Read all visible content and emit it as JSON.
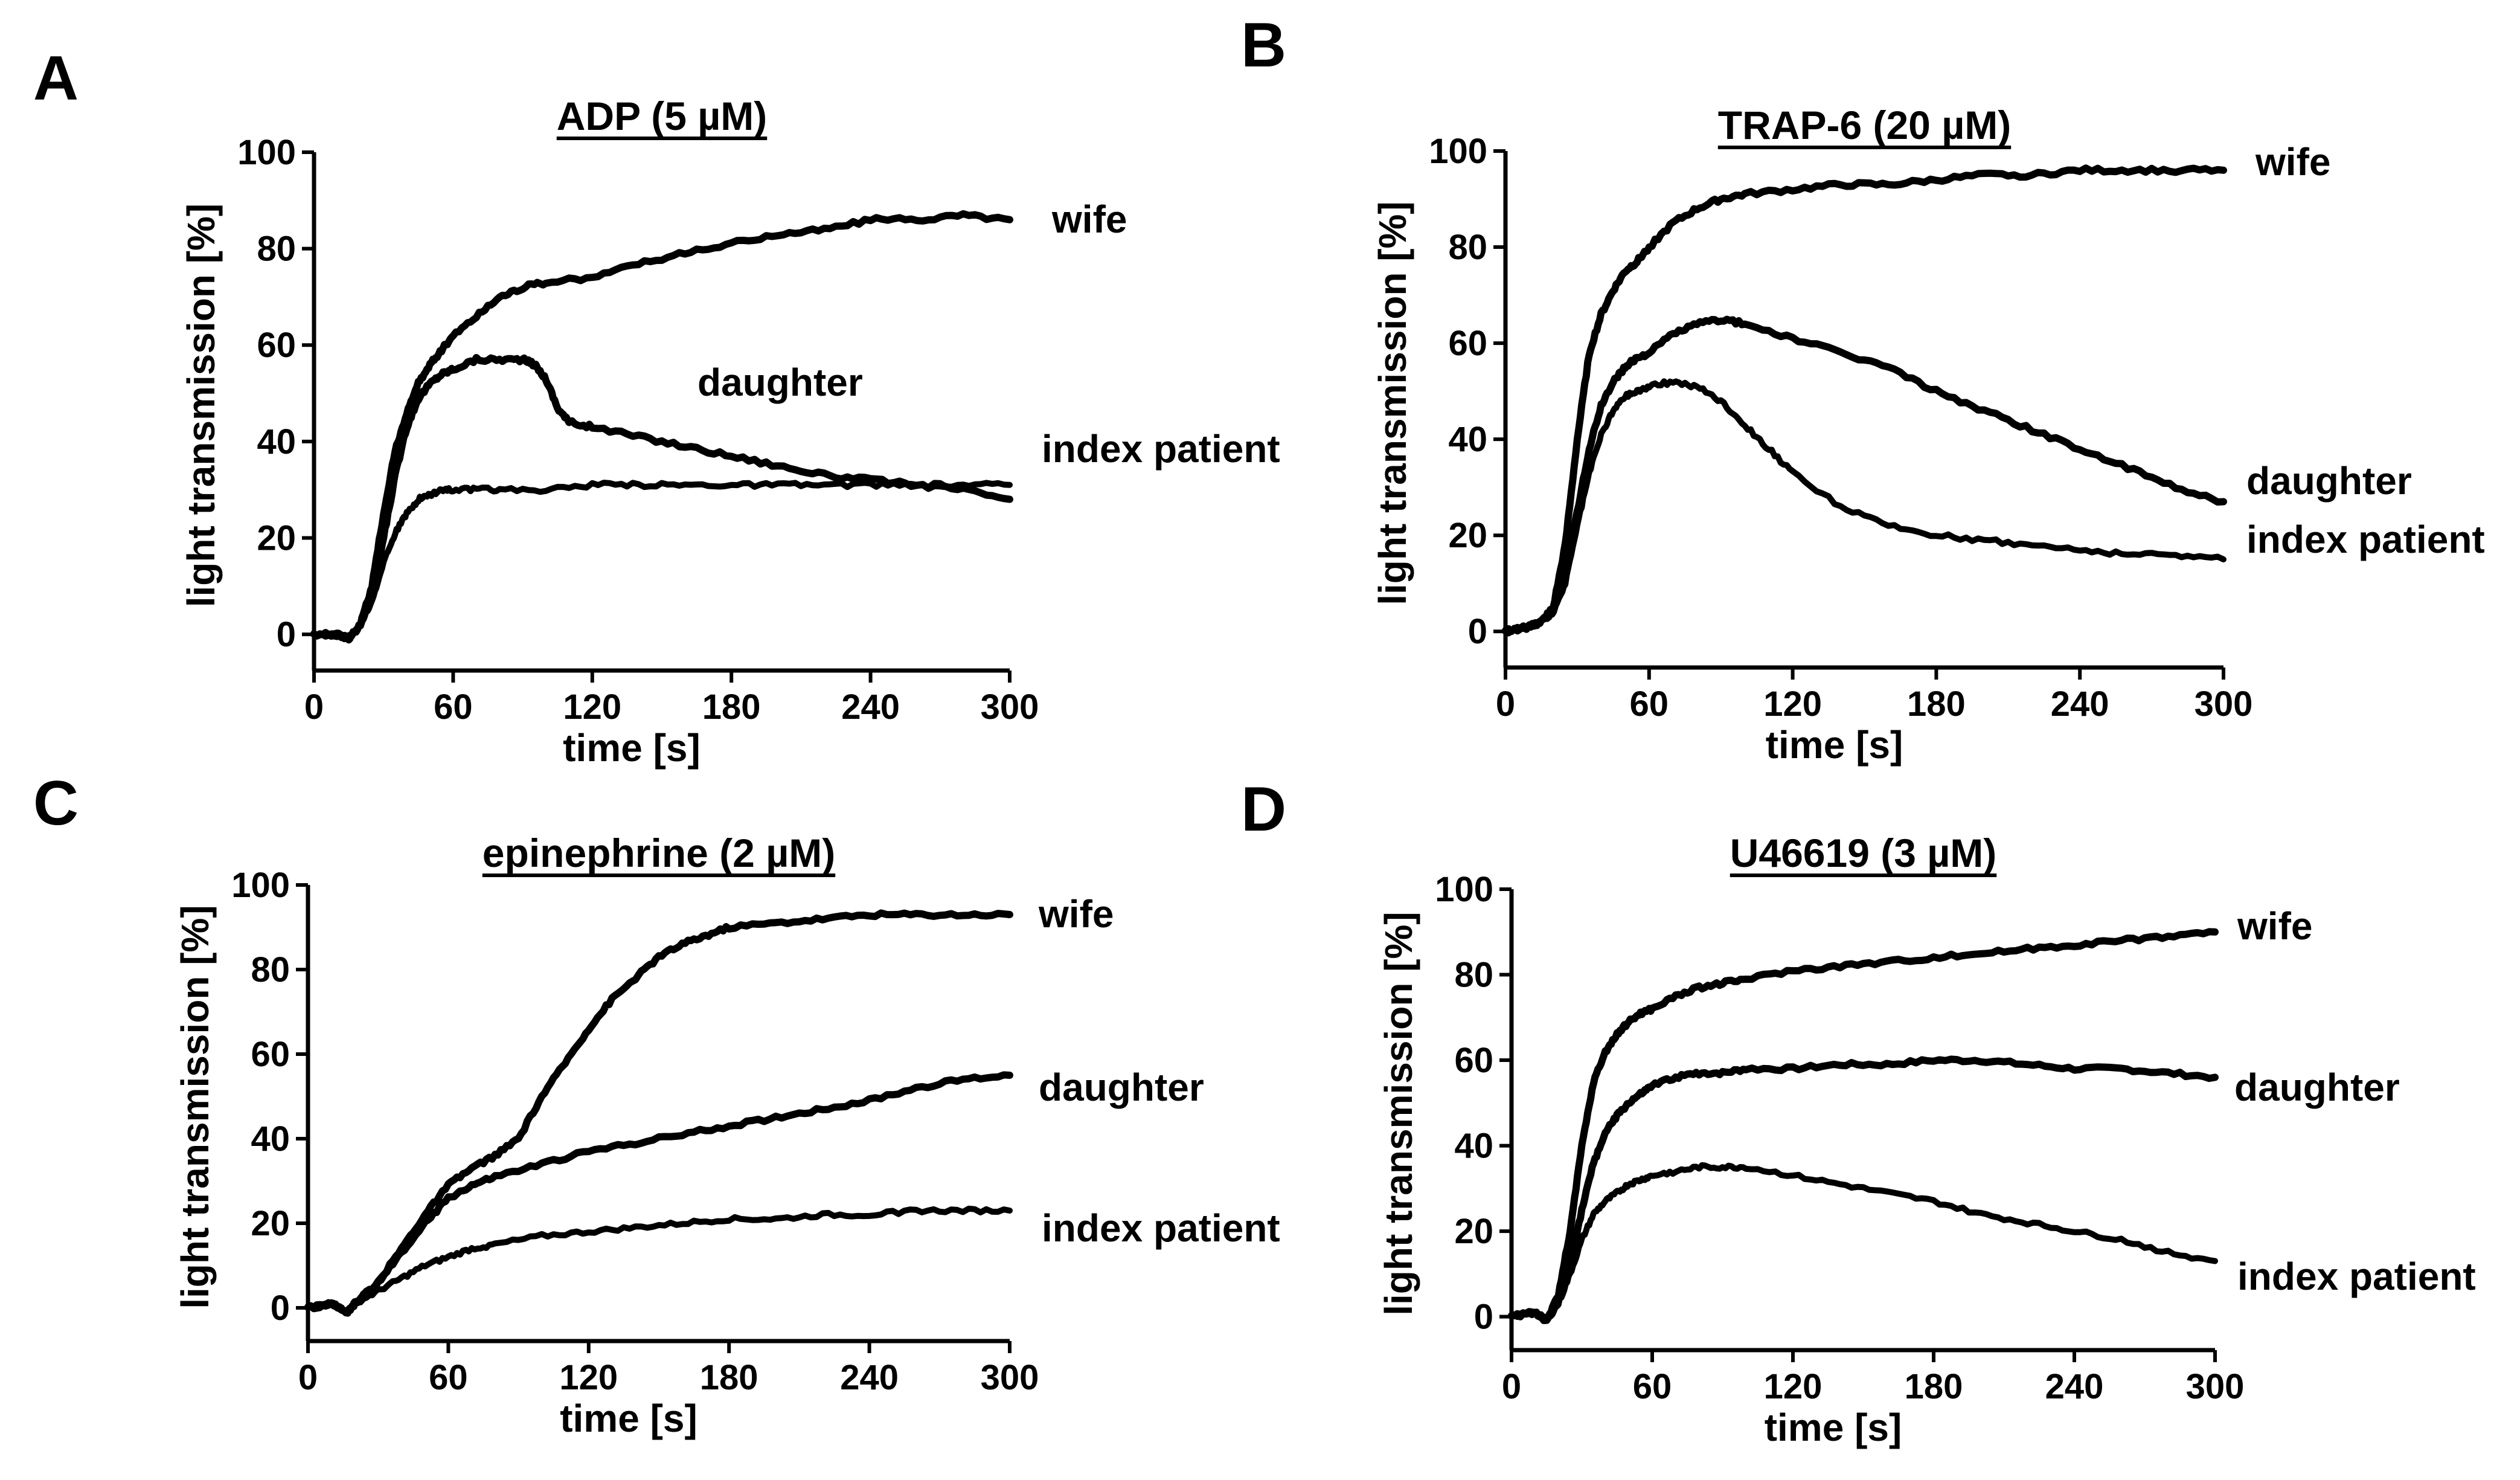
{
  "figure": {
    "description_visible": false
  },
  "chart_data": [
    {
      "panel": "A",
      "type": "line",
      "title": "ADP (5 µM)",
      "xlabel": "time [s]",
      "ylabel": "light transmission [%]",
      "xlim": [
        0,
        300
      ],
      "ylim": [
        -5,
        100
      ],
      "xticks": [
        "0",
        "60",
        "120",
        "180",
        "240",
        "300"
      ],
      "yticks": [
        "0",
        "20",
        "40",
        "60",
        "80",
        "100"
      ],
      "series": [
        {
          "name": "wife",
          "x": [
            0,
            10,
            15,
            20,
            25,
            30,
            35,
            40,
            45,
            50,
            55,
            60,
            70,
            80,
            90,
            100,
            120,
            140,
            160,
            180,
            200,
            220,
            240,
            260,
            280,
            300
          ],
          "y": [
            0,
            0,
            -1,
            2,
            10,
            25,
            38,
            46,
            52,
            56,
            59,
            62,
            66,
            70,
            72,
            73,
            74,
            77,
            79,
            81,
            83,
            84,
            86,
            86,
            87,
            86
          ]
        },
        {
          "name": "daughter",
          "x": [
            0,
            10,
            15,
            20,
            25,
            30,
            35,
            40,
            45,
            50,
            55,
            60,
            70,
            80,
            90,
            95,
            100,
            105,
            110,
            120,
            140,
            160,
            180,
            200,
            220,
            240,
            260,
            280,
            300
          ],
          "y": [
            0,
            0,
            -1,
            2,
            8,
            20,
            33,
            43,
            49,
            52,
            54,
            55,
            57,
            57,
            57,
            56,
            53,
            47,
            44,
            43,
            41,
            39,
            37,
            35,
            33,
            32,
            31,
            30,
            28
          ]
        },
        {
          "name": "index patient",
          "x": [
            0,
            10,
            15,
            20,
            25,
            30,
            35,
            40,
            45,
            50,
            55,
            60,
            70,
            80,
            100,
            120,
            140,
            160,
            180,
            200,
            220,
            240,
            260,
            280,
            300
          ],
          "y": [
            0,
            0,
            -1,
            2,
            7,
            15,
            21,
            25,
            28,
            29,
            30,
            30,
            30,
            30,
            30,
            31,
            31,
            31,
            31,
            31,
            31,
            31,
            31,
            31,
            31
          ]
        }
      ]
    },
    {
      "panel": "B",
      "type": "line",
      "title": "TRAP-6 (20 µM)",
      "xlabel": "time [s]",
      "ylabel": "light transmission [%]",
      "xlim": [
        0,
        300
      ],
      "ylim": [
        -5,
        100
      ],
      "xticks": [
        "0",
        "60",
        "120",
        "180",
        "240",
        "300"
      ],
      "yticks": [
        "0",
        "20",
        "40",
        "60",
        "80",
        "100"
      ],
      "series": [
        {
          "name": "wife",
          "x": [
            0,
            10,
            15,
            20,
            25,
            30,
            35,
            40,
            45,
            50,
            55,
            60,
            70,
            80,
            90,
            100,
            120,
            140,
            160,
            180,
            200,
            220,
            240,
            260,
            280,
            300
          ],
          "y": [
            0,
            1,
            2,
            5,
            18,
            40,
            58,
            66,
            71,
            75,
            77,
            80,
            85,
            88,
            90,
            91,
            92,
            93,
            93,
            94,
            95,
            95,
            96,
            96,
            96,
            96
          ]
        },
        {
          "name": "daughter",
          "x": [
            0,
            10,
            15,
            20,
            25,
            30,
            35,
            40,
            45,
            50,
            55,
            60,
            70,
            80,
            90,
            100,
            120,
            140,
            160,
            180,
            200,
            220,
            240,
            260,
            280,
            300
          ],
          "y": [
            0,
            1,
            2,
            4,
            12,
            25,
            38,
            47,
            52,
            55,
            57,
            58,
            62,
            64,
            65,
            64,
            61,
            58,
            55,
            50,
            46,
            42,
            38,
            34,
            30,
            27
          ]
        },
        {
          "name": "index patient",
          "x": [
            0,
            10,
            15,
            20,
            25,
            30,
            35,
            40,
            45,
            50,
            55,
            60,
            70,
            80,
            90,
            100,
            110,
            120,
            140,
            160,
            180,
            200,
            220,
            240,
            260,
            280,
            300
          ],
          "y": [
            0,
            1,
            2,
            4,
            10,
            22,
            33,
            41,
            46,
            49,
            50,
            51,
            52,
            51,
            48,
            43,
            38,
            33,
            26,
            22,
            20,
            19,
            18,
            17,
            16,
            16,
            15
          ]
        }
      ]
    },
    {
      "panel": "C",
      "type": "line",
      "title": "epinephrine (2 µM)",
      "xlabel": "time [s]",
      "ylabel": "light transmission [%]",
      "xlim": [
        0,
        300
      ],
      "ylim": [
        -5,
        100
      ],
      "xticks": [
        "0",
        "60",
        "120",
        "180",
        "240",
        "300"
      ],
      "yticks": [
        "0",
        "20",
        "40",
        "60",
        "80",
        "100"
      ],
      "series": [
        {
          "name": "wife",
          "x": [
            0,
            10,
            17,
            20,
            30,
            40,
            50,
            60,
            70,
            80,
            90,
            100,
            110,
            120,
            130,
            140,
            150,
            160,
            170,
            180,
            200,
            220,
            240,
            260,
            280,
            300
          ],
          "y": [
            0,
            1,
            -1,
            1,
            6,
            14,
            22,
            29,
            33,
            36,
            40,
            50,
            58,
            66,
            73,
            78,
            83,
            86,
            88,
            90,
            91,
            92,
            93,
            93,
            93,
            93
          ]
        },
        {
          "name": "daughter",
          "x": [
            0,
            10,
            17,
            20,
            30,
            40,
            50,
            60,
            70,
            80,
            100,
            120,
            140,
            160,
            180,
            200,
            220,
            240,
            260,
            280,
            300
          ],
          "y": [
            0,
            1,
            -1,
            1,
            6,
            13,
            20,
            26,
            29,
            31,
            34,
            37,
            39,
            41,
            43,
            45,
            47,
            49,
            52,
            54,
            55
          ]
        },
        {
          "name": "index patient",
          "x": [
            0,
            10,
            17,
            20,
            30,
            40,
            50,
            60,
            70,
            80,
            100,
            120,
            140,
            160,
            180,
            200,
            220,
            240,
            260,
            280,
            300
          ],
          "y": [
            0,
            1,
            -1,
            1,
            4,
            7,
            10,
            12,
            14,
            15,
            17,
            18,
            19,
            20,
            21,
            21,
            22,
            22,
            23,
            23,
            23
          ]
        }
      ]
    },
    {
      "panel": "D",
      "type": "line",
      "title": "U46619 (3 µM)",
      "xlabel": "time [s]",
      "ylabel": "light transmission [%]",
      "xlim": [
        0,
        300
      ],
      "ylim": [
        -5,
        100
      ],
      "xticks": [
        "0",
        "60",
        "120",
        "180",
        "240",
        "300"
      ],
      "yticks": [
        "0",
        "20",
        "40",
        "60",
        "80",
        "100"
      ],
      "series": [
        {
          "name": "wife",
          "x": [
            0,
            10,
            15,
            20,
            25,
            30,
            35,
            40,
            45,
            50,
            55,
            60,
            70,
            80,
            90,
            100,
            120,
            140,
            160,
            180,
            200,
            220,
            240,
            260,
            280,
            300
          ],
          "y": [
            0,
            1,
            -1,
            5,
            20,
            40,
            55,
            62,
            66,
            69,
            71,
            72,
            75,
            77,
            78,
            79,
            81,
            82,
            83,
            84,
            85,
            86,
            87,
            88,
            89,
            90
          ]
        },
        {
          "name": "daughter",
          "x": [
            0,
            10,
            15,
            20,
            25,
            30,
            35,
            40,
            45,
            50,
            55,
            60,
            70,
            80,
            90,
            100,
            120,
            140,
            160,
            180,
            200,
            220,
            240,
            260,
            280,
            300
          ],
          "y": [
            0,
            1,
            -1,
            4,
            12,
            25,
            36,
            43,
            47,
            50,
            52,
            54,
            56,
            57,
            57,
            58,
            58,
            59,
            59,
            60,
            60,
            59,
            58,
            58,
            57,
            56
          ]
        },
        {
          "name": "index patient",
          "x": [
            0,
            10,
            15,
            20,
            25,
            30,
            35,
            40,
            45,
            50,
            55,
            60,
            70,
            80,
            90,
            100,
            120,
            140,
            160,
            180,
            200,
            220,
            240,
            260,
            280,
            300
          ],
          "y": [
            0,
            1,
            -1,
            3,
            10,
            18,
            24,
            27,
            29,
            31,
            32,
            33,
            34,
            35,
            35,
            35,
            33,
            31,
            29,
            27,
            24,
            22,
            20,
            18,
            15,
            13
          ]
        }
      ]
    }
  ]
}
